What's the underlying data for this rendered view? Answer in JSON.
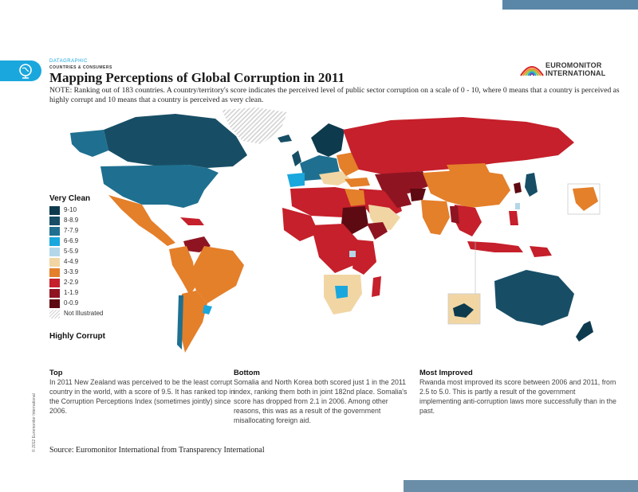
{
  "header": {
    "kicker": "DATAGRAPHIC",
    "subkicker": "COUNTRIES & CONSUMERS",
    "title": "Mapping Perceptions of Global Corruption in 2011",
    "note": "NOTE: Ranking out of 183 countries. A country/territory's score indicates the perceived level of public sector corruption on a scale of 0 - 10, where 0 means that a country is perceived as highly corrupt and 10 means that a country is perceived as very clean."
  },
  "brand": {
    "line1": "EUROMONITOR",
    "line2": "INTERNATIONAL"
  },
  "legend": {
    "top_label": "Very Clean",
    "bottom_label": "Highly Corrupt",
    "items": [
      {
        "label": "9-10",
        "color": "#0e3a4e"
      },
      {
        "label": "8-8.9",
        "color": "#174e66"
      },
      {
        "label": "7-7.9",
        "color": "#1f7090"
      },
      {
        "label": "6-6.9",
        "color": "#1aa7dd"
      },
      {
        "label": "5-5.9",
        "color": "#b3d7e8"
      },
      {
        "label": "4-4.9",
        "color": "#f1d6a4"
      },
      {
        "label": "3-3.9",
        "color": "#e47f2a"
      },
      {
        "label": "2-2.9",
        "color": "#c5202b"
      },
      {
        "label": "1-1.9",
        "color": "#8f1422"
      },
      {
        "label": "0-0.9",
        "color": "#5e0a12"
      },
      {
        "label": "Not Illustrated",
        "color": "#d2d2d2"
      }
    ]
  },
  "sections": {
    "top": {
      "heading": "Top",
      "body": "In 2011 New Zealand was perceived to be the least corrupt country in the world, with a score of 9.5. It has ranked top in the Corruption Perceptions Index (sometimes jointly) since 2006."
    },
    "bottom": {
      "heading": "Bottom",
      "body": "Somalia and North Korea both scored just 1 in the 2011 index, ranking them both in joint 182nd place. Somalia's score has dropped from 2.1 in 2006. Among other reasons, this was as a result of the government misallocating foreign aid."
    },
    "improved": {
      "heading": "Most Improved",
      "body": "Rwanda most improved its score between 2006 and 2011, from 2.5 to 5.0. This is partly a result of the government implementing anti-corruption laws more successfully than in the past."
    }
  },
  "footer": {
    "source": "Source: Euromonitor International from Transparency International",
    "copyright": "© 2012 Euromonitor International"
  }
}
